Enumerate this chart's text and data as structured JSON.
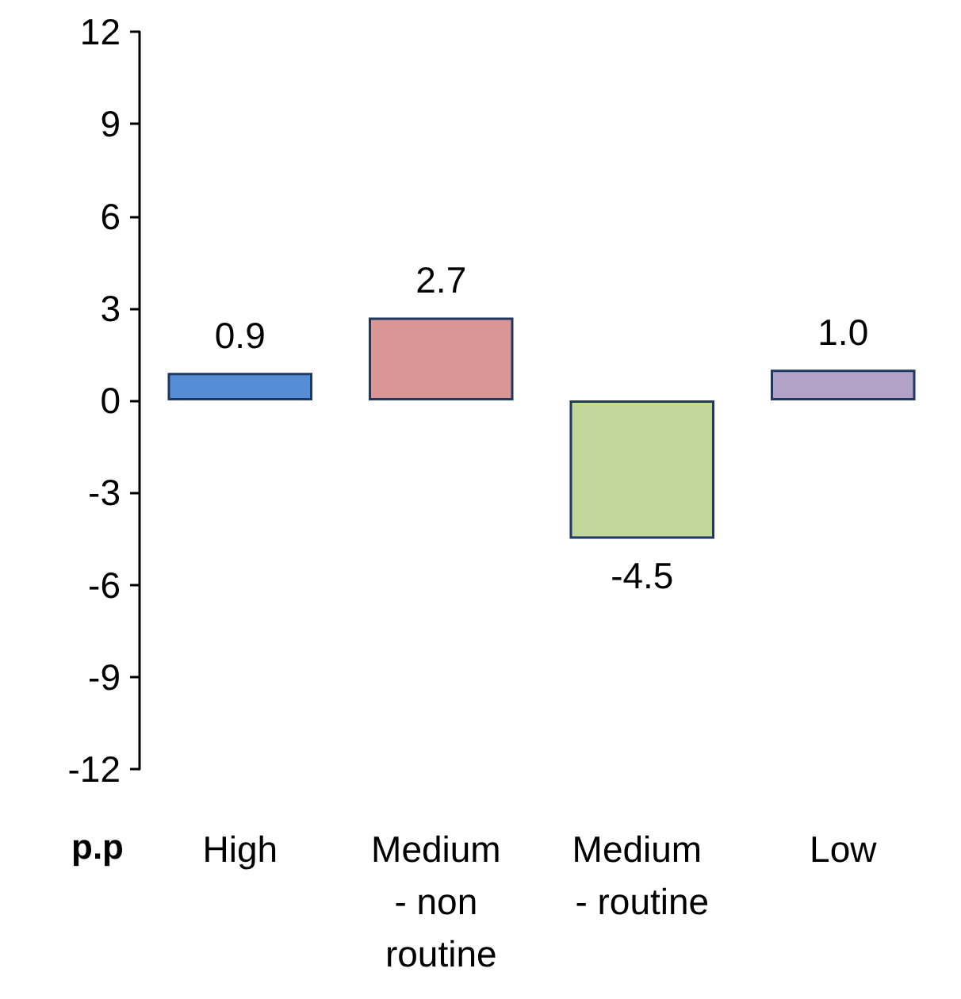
{
  "chart_data": {
    "type": "bar",
    "ylabel": "p.p",
    "categories": [
      "High",
      "Medium - non routine",
      "Medium - routine",
      "Low"
    ],
    "values": [
      0.9,
      2.7,
      -4.5,
      1.0
    ],
    "colors": [
      "#558ed5",
      "#d99694",
      "#c3d69b",
      "#b3a2c7"
    ],
    "value_labels": [
      "0.9",
      "2.7",
      "-4.5",
      "1.0"
    ],
    "ylim": [
      -12,
      12
    ],
    "yticks": [
      -12,
      -9,
      -6,
      -3,
      0,
      3,
      6,
      9,
      12
    ],
    "grid": false
  }
}
